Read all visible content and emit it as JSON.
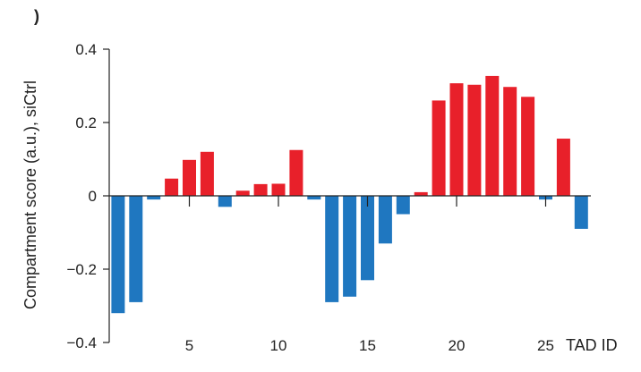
{
  "panel_label": ")",
  "colors": {
    "positive": "#e8202a",
    "negative": "#1f77c0",
    "axis": "#222222"
  },
  "chart_data": {
    "type": "bar",
    "title": "",
    "xlabel": "TAD ID",
    "ylabel": "Compartment score (a.u.), siCtrl",
    "ylim": [
      -0.4,
      0.4
    ],
    "yticks": [
      0.4,
      0.2,
      0,
      -0.2,
      -0.4
    ],
    "ytick_labels": [
      "0.4",
      "0.2",
      "0",
      "−0.2",
      "−0.4"
    ],
    "xticks": [
      5,
      10,
      15,
      20,
      25
    ],
    "xtick_labels": [
      "5",
      "10",
      "15",
      "20",
      "25"
    ],
    "grid": false,
    "legend": false,
    "x": [
      1,
      2,
      3,
      4,
      5,
      6,
      7,
      8,
      9,
      10,
      11,
      12,
      13,
      14,
      15,
      16,
      17,
      18,
      19,
      20,
      21,
      22,
      23,
      24,
      25,
      26,
      27
    ],
    "values": [
      -0.32,
      -0.29,
      -0.01,
      0.047,
      0.098,
      0.12,
      -0.03,
      0.014,
      0.032,
      0.033,
      0.125,
      -0.01,
      -0.29,
      -0.275,
      -0.23,
      -0.13,
      -0.05,
      0.01,
      0.26,
      0.307,
      0.303,
      0.327,
      0.297,
      0.27,
      -0.01,
      0.156,
      -0.09
    ]
  }
}
